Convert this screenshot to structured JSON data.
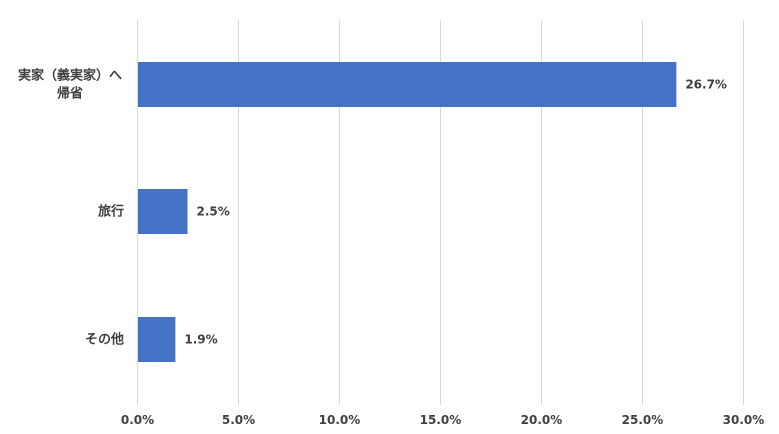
{
  "chart_data": {
    "type": "bar",
    "orientation": "horizontal",
    "categories": [
      [
        "実家（義実家）へ",
        "帰省"
      ],
      [
        "旅行"
      ],
      [
        "その他"
      ]
    ],
    "values": [
      26.7,
      2.5,
      1.9
    ],
    "data_labels": [
      "26.7%",
      "2.5%",
      "1.9%"
    ],
    "xlim": [
      0,
      30
    ],
    "x_ticks": [
      0,
      5,
      10,
      15,
      20,
      25,
      30
    ],
    "x_tick_labels": [
      "0.0%",
      "5.0%",
      "10.0%",
      "15.0%",
      "20.0%",
      "25.0%",
      "30.0%"
    ],
    "grid": true,
    "legend": false,
    "bar_color": "#4472c4"
  }
}
